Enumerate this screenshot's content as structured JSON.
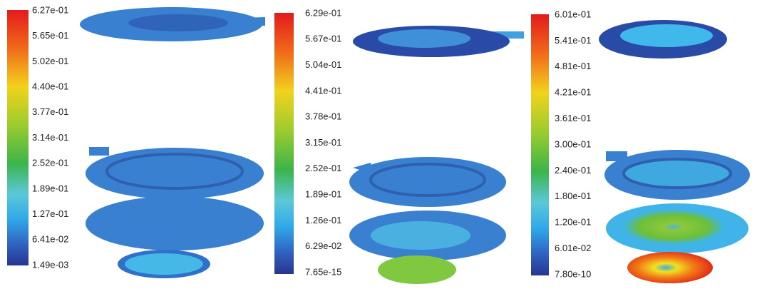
{
  "panels": [
    {
      "labels": [
        "6.27e-01",
        "5.65e-01",
        "5.02e-01",
        "4.40e-01",
        "3.77e-01",
        "3.14e-01",
        "2.52e-01",
        "1.89e-01",
        "1.27e-01",
        "6.41e-02",
        "1.49e-03"
      ]
    },
    {
      "labels": [
        "6.29e-01",
        "5.67e-01",
        "5.04e-01",
        "4.41e-01",
        "3.78e-01",
        "3.15e-01",
        "2.52e-01",
        "1.89e-01",
        "1.26e-01",
        "6.29e-02",
        "7.65e-15"
      ]
    },
    {
      "labels": [
        "6.01e-01",
        "5.41e-01",
        "4.81e-01",
        "4.21e-01",
        "3.61e-01",
        "3.00e-01",
        "2.40e-01",
        "1.80e-01",
        "1.20e-01",
        "6.01e-02",
        "7.80e-10"
      ]
    }
  ]
}
